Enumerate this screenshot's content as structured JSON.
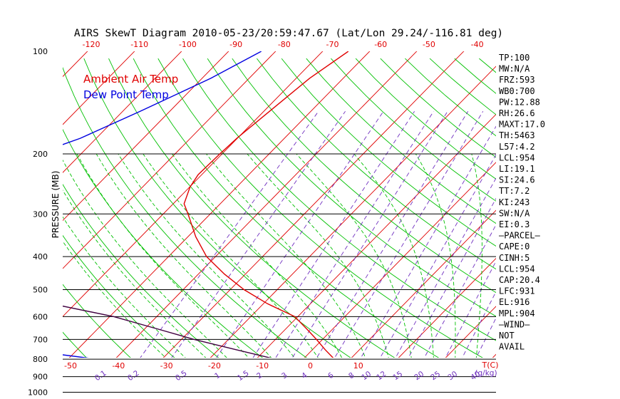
{
  "chart_data": {
    "type": "line",
    "title": "AIRS SkewT Diagram 2010-05-23/20:59:47.67 (Lat/Lon 29.24/-116.81 deg)",
    "ylabel": "PRESSURE (MB)",
    "pressure_ticks": [
      100,
      200,
      300,
      400,
      500,
      600,
      700,
      800,
      900,
      1000
    ],
    "pressure_lines": [
      200,
      300,
      400,
      500,
      600,
      700,
      800,
      900,
      1000
    ],
    "top_temp_ticks": [
      "-120",
      "-110",
      "-100",
      "-90",
      "-80",
      "-70",
      "-60",
      "-50",
      "-40"
    ],
    "bottom_temp_ticks": [
      "-50",
      "-40",
      "-30",
      "-20",
      "-10",
      "0",
      "10"
    ],
    "temp_axis_label": "T(C)",
    "mixing_ratio_ticks": [
      "0.1",
      "0.2",
      "0.5",
      "1",
      "1.5",
      "2",
      "3",
      "4",
      "6",
      "8",
      "10",
      "12",
      "15",
      "20",
      "25",
      "30",
      "40"
    ],
    "mixing_ratio_unit": "(g/kg)",
    "legend": [
      {
        "label": "Ambient Air Temp",
        "color": "#e00000"
      },
      {
        "label": "Dew Point Temp",
        "color": "#0000e0"
      }
    ],
    "colors": {
      "isotherm": "#e00000",
      "dry_adiabat": "#00c000",
      "moist_adiabat": "#00c000",
      "mixing_ratio": "#7030c0",
      "parcel": "#400040",
      "isobar": "#000000"
    },
    "series": [
      {
        "name": "Ambient Air Temp",
        "color": "#e00000",
        "points": [
          [
            100,
            -64.5
          ],
          [
            120,
            -67
          ],
          [
            150,
            -68.5
          ],
          [
            180,
            -69.7
          ],
          [
            200,
            -70
          ],
          [
            230,
            -70.2
          ],
          [
            250,
            -69.3
          ],
          [
            280,
            -67
          ],
          [
            300,
            -64
          ],
          [
            350,
            -57.5
          ],
          [
            400,
            -51
          ],
          [
            450,
            -43.5
          ],
          [
            500,
            -36
          ],
          [
            550,
            -28
          ],
          [
            600,
            -19.5
          ],
          [
            650,
            -14.5
          ],
          [
            700,
            -10
          ],
          [
            750,
            -6
          ],
          [
            800,
            -2
          ],
          [
            850,
            2
          ],
          [
            880,
            6
          ],
          [
            920,
            10.5
          ],
          [
            950,
            14
          ],
          [
            980,
            18.5
          ],
          [
            1000,
            22
          ]
        ]
      },
      {
        "name": "Dew Point Temp",
        "color": "#0000e0",
        "points": [
          [
            100,
            -83
          ],
          [
            120,
            -88
          ],
          [
            150,
            -96
          ],
          [
            180,
            -103
          ],
          [
            200,
            -109
          ],
          [
            230,
            -117
          ],
          [
            250,
            -119.5
          ],
          [
            280,
            -126
          ],
          [
            300,
            -129
          ],
          [
            350,
            -137
          ],
          [
            400,
            -143
          ],
          [
            450,
            -147
          ],
          [
            500,
            -149
          ],
          [
            550,
            -141
          ],
          [
            600,
            -128
          ],
          [
            650,
            -107
          ],
          [
            700,
            -89
          ],
          [
            750,
            -70.5
          ],
          [
            800,
            -52.5
          ],
          [
            850,
            -36.5
          ],
          [
            880,
            -24
          ],
          [
            920,
            -13
          ],
          [
            950,
            -5
          ],
          [
            980,
            4
          ],
          [
            1000,
            12
          ]
        ]
      },
      {
        "name": "",
        "color": "#400040",
        "points": [
          [
            100,
            -198
          ],
          [
            120,
            -190
          ],
          [
            150,
            -180
          ],
          [
            180,
            -171
          ],
          [
            200,
            -166
          ],
          [
            250,
            -152.5
          ],
          [
            300,
            -140.5
          ],
          [
            350,
            -128.5
          ],
          [
            400,
            -116
          ],
          [
            450,
            -103
          ],
          [
            500,
            -90
          ],
          [
            550,
            -74
          ],
          [
            600,
            -58
          ],
          [
            650,
            -46.5
          ],
          [
            700,
            -36
          ],
          [
            750,
            -25
          ],
          [
            800,
            -14.5
          ],
          [
            850,
            -5
          ],
          [
            880,
            2
          ],
          [
            920,
            7.5
          ],
          [
            950,
            12
          ],
          [
            980,
            17.5
          ],
          [
            1000,
            21
          ]
        ]
      }
    ],
    "stats": [
      "TP:100",
      "MW:N/A",
      "FRZ:593",
      "WB0:700",
      "PW:12.88",
      "RH:26.6",
      "MAXT:17.0",
      "TH:5463",
      "L57:4.2",
      "LCL:954",
      "LI:19.1",
      "SI:24.6",
      "TT:7.2",
      "KI:243",
      "SW:N/A",
      "EI:0.3",
      "—PARCEL—",
      "CAPE:0",
      "CINH:5",
      "LCL:954",
      "CAP:20.4",
      "LFC:931",
      "EL:916",
      "MPL:904",
      "—WIND—",
      "NOT",
      "AVAIL"
    ]
  }
}
